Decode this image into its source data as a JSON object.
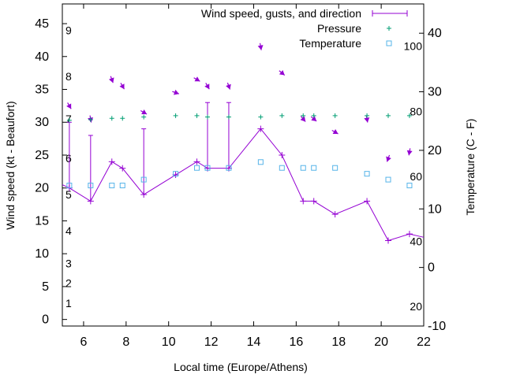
{
  "chart_data": {
    "type": "line",
    "xlabel": "Local time (Europe/Athens)",
    "ylabel": "Wind speed (kt - Beaufort)",
    "y2label": "Temperature (C - F)",
    "xlim": [
      5,
      22
    ],
    "ylim": [
      -1,
      48
    ],
    "y2lim": [
      -10,
      45
    ],
    "x_ticks": [
      "6",
      "8",
      "10",
      "12",
      "14",
      "16",
      "18",
      "20",
      "22"
    ],
    "y_ticks": [
      "0",
      "5",
      "10",
      "15",
      "20",
      "25",
      "30",
      "35",
      "40",
      "45"
    ],
    "y2_ticks": [
      "-10",
      "0",
      "10",
      "20",
      "30",
      "40"
    ],
    "fahrenheit_labels": [
      "20",
      "40",
      "60",
      "80",
      "100"
    ],
    "beaufort_labels": [
      "1",
      "2",
      "3",
      "4",
      "5",
      "6",
      "7",
      "8",
      "9"
    ],
    "legend_position": "top-right",
    "series": [
      {
        "name": "Wind speed, gusts, and direction",
        "color": "#9400d3",
        "x": [
          5.0,
          5.33,
          6.33,
          7.33,
          7.83,
          8.83,
          10.33,
          11.33,
          11.83,
          12.83,
          14.33,
          15.33,
          16.33,
          16.83,
          17.83,
          19.33,
          20.33,
          21.33,
          22.0
        ],
        "values": [
          20.5,
          20,
          18,
          24,
          23,
          19,
          22,
          24,
          23,
          23,
          29,
          25,
          18,
          18,
          16,
          18,
          12,
          13,
          12.5
        ],
        "gusts": [
          null,
          30,
          28,
          null,
          null,
          29,
          null,
          null,
          33,
          33,
          null,
          null,
          null,
          null,
          null,
          null,
          null,
          null,
          null
        ],
        "direction_deg": [
          null,
          330,
          350,
          340,
          330,
          300,
          290,
          300,
          330,
          340,
          350,
          310,
          320,
          310,
          300,
          350,
          20,
          10,
          null
        ]
      },
      {
        "name": "Pressure",
        "color": "#009e73",
        "x": [
          5.33,
          6.33,
          7.33,
          7.83,
          8.83,
          10.33,
          11.33,
          11.83,
          12.83,
          14.33,
          15.33,
          16.33,
          16.83,
          17.83,
          19.33,
          20.33,
          21.33
        ],
        "values": [
          30.3,
          30.4,
          30.6,
          30.6,
          30.8,
          31.0,
          31.0,
          30.8,
          30.8,
          30.8,
          31.0,
          31.0,
          31.0,
          31.0,
          31.0,
          31.0,
          31.0
        ]
      },
      {
        "name": "Temperature",
        "color": "#56b4e9",
        "x": [
          5.33,
          6.33,
          7.33,
          7.83,
          8.83,
          10.33,
          11.33,
          11.83,
          12.83,
          14.33,
          15.33,
          16.33,
          16.83,
          17.83,
          19.33,
          20.33,
          21.33
        ],
        "values": [
          14,
          14,
          14,
          14,
          15,
          16,
          17,
          17,
          17,
          18,
          17,
          17,
          17,
          17,
          16,
          15,
          14
        ]
      }
    ]
  }
}
